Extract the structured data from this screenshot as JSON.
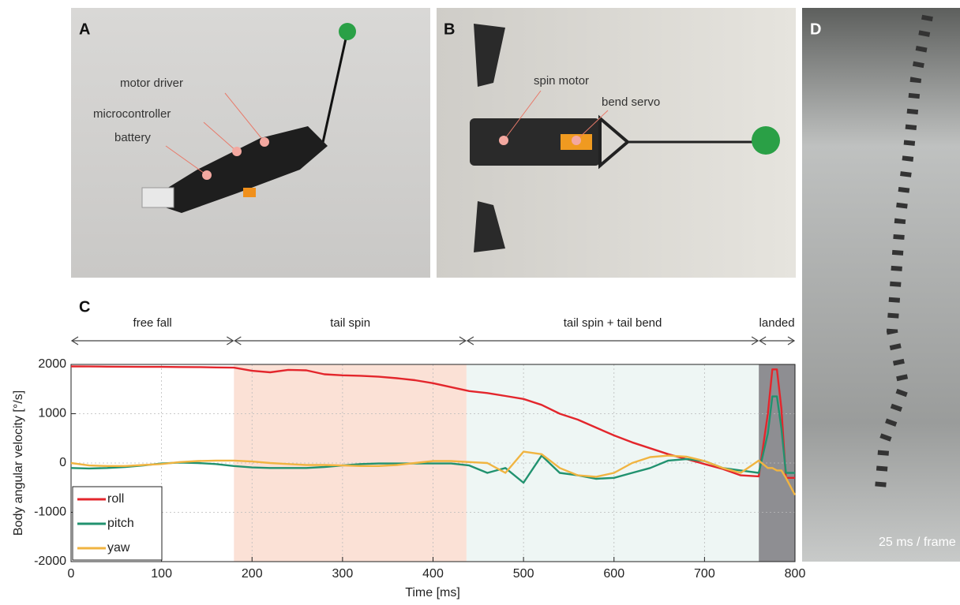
{
  "panels": {
    "A": {
      "label": "A",
      "annotations": [
        "motor driver",
        "microcontroller",
        "battery"
      ]
    },
    "B": {
      "label": "B",
      "annotations": [
        "spin motor",
        "bend servo"
      ]
    },
    "D": {
      "label": "D",
      "caption": "25 ms / frame"
    }
  },
  "chart_data": {
    "type": "line",
    "panel_label": "C",
    "x_label": "Time [ms]",
    "y_label": "Body angular velocity [°/s]",
    "xlim": [
      0,
      800
    ],
    "ylim": [
      -2000,
      2000
    ],
    "xticks": [
      0,
      100,
      200,
      300,
      400,
      500,
      600,
      700,
      800
    ],
    "yticks": [
      -2000,
      -1000,
      0,
      1000,
      2000
    ],
    "grid": true,
    "legend": "lower left",
    "phases": [
      {
        "label": "free fall",
        "start": 0,
        "end": 180,
        "color": null
      },
      {
        "label": "tail spin",
        "start": 180,
        "end": 437,
        "color": "#fbe1d6"
      },
      {
        "label": "tail spin + tail bend",
        "start": 437,
        "end": 760,
        "color": "#eef6f4"
      },
      {
        "label": "landed",
        "start": 760,
        "end": 800,
        "color": "#8e8e92"
      }
    ],
    "x": [
      0,
      20,
      40,
      60,
      80,
      100,
      120,
      140,
      160,
      180,
      200,
      220,
      240,
      260,
      280,
      300,
      320,
      340,
      360,
      380,
      400,
      420,
      440,
      460,
      480,
      500,
      520,
      540,
      560,
      580,
      600,
      620,
      640,
      660,
      680,
      700,
      720,
      740,
      760,
      770,
      775,
      780,
      785,
      790,
      800
    ],
    "series": [
      {
        "name": "roll",
        "color": "#e3262c",
        "values": [
          1960,
          1958,
          1955,
          1953,
          1950,
          1950,
          1948,
          1945,
          1940,
          1935,
          1870,
          1840,
          1890,
          1880,
          1800,
          1780,
          1770,
          1750,
          1720,
          1680,
          1620,
          1540,
          1460,
          1420,
          1360,
          1300,
          1180,
          1000,
          880,
          720,
          560,
          420,
          300,
          180,
          80,
          -20,
          -120,
          -250,
          -270,
          1000,
          1900,
          1900,
          1100,
          -300,
          -300
        ]
      },
      {
        "name": "pitch",
        "color": "#21926f",
        "values": [
          -100,
          -110,
          -100,
          -80,
          -50,
          -10,
          10,
          0,
          -20,
          -60,
          -90,
          -100,
          -100,
          -100,
          -80,
          -50,
          -20,
          -10,
          -10,
          -10,
          -10,
          -10,
          -50,
          -200,
          -100,
          -400,
          150,
          -200,
          -250,
          -320,
          -300,
          -200,
          -100,
          50,
          80,
          40,
          -100,
          -150,
          -200,
          600,
          1350,
          1350,
          700,
          -200,
          -200
        ]
      },
      {
        "name": "yaw",
        "color": "#f0b441",
        "values": [
          0,
          -50,
          -60,
          -60,
          -40,
          -20,
          20,
          40,
          50,
          50,
          30,
          0,
          -20,
          -40,
          -40,
          -50,
          -60,
          -60,
          -40,
          0,
          40,
          40,
          20,
          0,
          -200,
          230,
          180,
          -100,
          -250,
          -280,
          -200,
          0,
          120,
          150,
          130,
          40,
          -100,
          -200,
          50,
          -100,
          -100,
          -150,
          -150,
          -300,
          -650
        ]
      }
    ]
  }
}
